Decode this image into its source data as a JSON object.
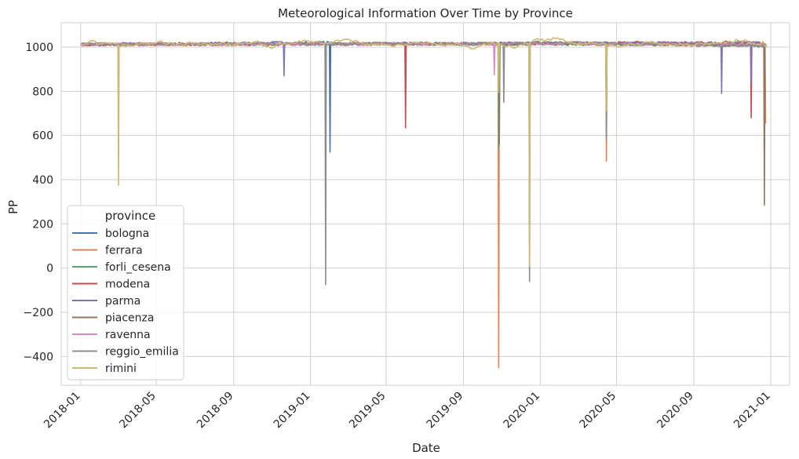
{
  "chart_data": {
    "type": "line",
    "title": "Meteorological Information Over Time by Province",
    "xlabel": "Date",
    "ylabel": "PP",
    "x_type": "date",
    "xlim": [
      "2017-12-01",
      "2021-01-31"
    ],
    "ylim": [
      -530,
      1110
    ],
    "x_ticks": [
      "2018-01",
      "2018-05",
      "2018-09",
      "2019-01",
      "2019-05",
      "2019-09",
      "2020-01",
      "2020-05",
      "2020-09",
      "2021-01"
    ],
    "y_ticks": [
      -400,
      -200,
      0,
      200,
      400,
      600,
      800,
      1000
    ],
    "grid": true,
    "legend": {
      "title": "province",
      "position": "lower-left"
    },
    "baseline_range": [
      990,
      1035
    ],
    "series": [
      {
        "name": "bologna",
        "color": "#4c72b0",
        "points": [
          [
            "2018-01-01",
            1012
          ],
          [
            "2018-06-01",
            1015
          ],
          [
            "2019-01-31",
            1020
          ],
          [
            "2019-02-01",
            525
          ],
          [
            "2019-02-02",
            1015
          ],
          [
            "2019-09-01",
            1012
          ],
          [
            "2020-03-01",
            1018
          ],
          [
            "2020-12-25",
            1010
          ]
        ]
      },
      {
        "name": "ferrara",
        "color": "#dd8452",
        "points": [
          [
            "2018-01-01",
            1012
          ],
          [
            "2019-10-26",
            1015
          ],
          [
            "2019-10-27",
            -450
          ],
          [
            "2019-10-28",
            1015
          ],
          [
            "2020-04-14",
            1015
          ],
          [
            "2020-04-15",
            485
          ],
          [
            "2020-04-16",
            1015
          ],
          [
            "2020-12-23",
            1010
          ],
          [
            "2020-12-24",
            655
          ]
        ]
      },
      {
        "name": "forli_cesena",
        "color": "#55a868",
        "points": [
          [
            "2018-01-01",
            1012
          ],
          [
            "2019-10-26",
            1015
          ],
          [
            "2019-10-27",
            545
          ],
          [
            "2019-10-28",
            1015
          ],
          [
            "2020-12-25",
            1010
          ]
        ]
      },
      {
        "name": "modena",
        "color": "#c44e52",
        "points": [
          [
            "2018-01-01",
            1012
          ],
          [
            "2019-05-31",
            1015
          ],
          [
            "2019-06-01",
            635
          ],
          [
            "2019-06-02",
            1015
          ],
          [
            "2020-11-30",
            1020
          ],
          [
            "2020-12-01",
            680
          ],
          [
            "2020-12-02",
            1020
          ],
          [
            "2020-12-25",
            1010
          ]
        ]
      },
      {
        "name": "parma",
        "color": "#8172b3",
        "points": [
          [
            "2018-01-01",
            1012
          ],
          [
            "2018-11-19",
            1018
          ],
          [
            "2018-11-20",
            870
          ],
          [
            "2018-11-21",
            1015
          ],
          [
            "2020-10-14",
            1018
          ],
          [
            "2020-10-15",
            790
          ],
          [
            "2020-10-16",
            1018
          ],
          [
            "2020-11-30",
            1022
          ],
          [
            "2020-12-01",
            840
          ],
          [
            "2020-12-02",
            1022
          ],
          [
            "2020-12-25",
            1010
          ]
        ]
      },
      {
        "name": "piacenza",
        "color": "#937860",
        "points": [
          [
            "2018-01-01",
            1012
          ],
          [
            "2019-10-27",
            1015
          ],
          [
            "2019-10-28",
            560
          ],
          [
            "2019-10-29",
            1015
          ],
          [
            "2020-12-21",
            1010
          ],
          [
            "2020-12-22",
            285
          ],
          [
            "2020-12-23",
            1005
          ],
          [
            "2020-12-25",
            1000
          ]
        ]
      },
      {
        "name": "ravenna",
        "color": "#da8bc3",
        "points": [
          [
            "2018-01-01",
            1012
          ],
          [
            "2019-10-19",
            1015
          ],
          [
            "2019-10-20",
            875
          ],
          [
            "2019-10-21",
            1015
          ],
          [
            "2020-12-25",
            1010
          ]
        ]
      },
      {
        "name": "reggio_emilia",
        "color": "#8c8c8c",
        "points": [
          [
            "2018-01-01",
            1012
          ],
          [
            "2019-01-24",
            1018
          ],
          [
            "2019-01-25",
            -75
          ],
          [
            "2019-01-26",
            1015
          ],
          [
            "2019-11-03",
            1015
          ],
          [
            "2019-11-04",
            750
          ],
          [
            "2019-11-05",
            1015
          ],
          [
            "2019-12-14",
            1018
          ],
          [
            "2019-12-15",
            -60
          ],
          [
            "2019-12-16",
            1022
          ],
          [
            "2020-04-14",
            1015
          ],
          [
            "2020-04-15",
            580
          ],
          [
            "2020-04-16",
            1015
          ],
          [
            "2020-12-25",
            1005
          ]
        ]
      },
      {
        "name": "rimini",
        "color": "#ccb974",
        "points": [
          [
            "2018-01-01",
            1012
          ],
          [
            "2018-01-10",
            1018
          ],
          [
            "2018-01-20",
            1030
          ],
          [
            "2018-01-28",
            1010
          ],
          [
            "2018-02-10",
            1020
          ],
          [
            "2018-02-25",
            1015
          ],
          [
            "2018-03-01",
            1020
          ],
          [
            "2018-03-02",
            375
          ],
          [
            "2018-03-03",
            1000
          ],
          [
            "2018-03-10",
            1010
          ],
          [
            "2018-03-20",
            1005
          ],
          [
            "2018-04-05",
            1015
          ],
          [
            "2018-04-20",
            1012
          ],
          [
            "2018-05-05",
            1025
          ],
          [
            "2018-05-20",
            1015
          ],
          [
            "2018-06-10",
            1012
          ],
          [
            "2018-07-01",
            1018
          ],
          [
            "2018-07-20",
            1012
          ],
          [
            "2018-08-10",
            1015
          ],
          [
            "2018-09-01",
            1010
          ],
          [
            "2018-09-20",
            1020
          ],
          [
            "2018-10-05",
            1025
          ],
          [
            "2018-10-20",
            1010
          ],
          [
            "2018-10-30",
            995
          ],
          [
            "2018-11-10",
            1018
          ],
          [
            "2018-11-25",
            1012
          ],
          [
            "2018-12-10",
            1020
          ],
          [
            "2018-12-25",
            1028
          ],
          [
            "2019-01-10",
            1025
          ],
          [
            "2019-01-28",
            1015
          ],
          [
            "2019-02-10",
            1030
          ],
          [
            "2019-02-25",
            1035
          ],
          [
            "2019-03-10",
            1025
          ],
          [
            "2019-03-25",
            1018
          ],
          [
            "2019-04-10",
            1010
          ],
          [
            "2019-04-25",
            1015
          ],
          [
            "2019-05-10",
            1005
          ],
          [
            "2019-05-25",
            1012
          ],
          [
            "2019-06-10",
            1018
          ],
          [
            "2019-07-01",
            1015
          ],
          [
            "2019-07-20",
            1012
          ],
          [
            "2019-08-10",
            1010
          ],
          [
            "2019-08-25",
            1015
          ],
          [
            "2019-09-05",
            1005
          ],
          [
            "2019-09-20",
            995
          ],
          [
            "2019-10-01",
            1010
          ],
          [
            "2019-10-15",
            1020
          ],
          [
            "2019-10-25",
            1015
          ],
          [
            "2019-10-26",
            1018
          ],
          [
            "2019-10-27",
            795
          ],
          [
            "2019-10-28",
            1015
          ],
          [
            "2019-11-10",
            1005
          ],
          [
            "2019-11-25",
            1000
          ],
          [
            "2019-12-05",
            1010
          ],
          [
            "2019-12-14",
            1015
          ],
          [
            "2019-12-15",
            10
          ],
          [
            "2019-12-16",
            1020
          ],
          [
            "2019-12-25",
            1035
          ],
          [
            "2020-01-10",
            1030
          ],
          [
            "2020-01-25",
            1038
          ],
          [
            "2020-02-10",
            1025
          ],
          [
            "2020-02-25",
            1018
          ],
          [
            "2020-03-10",
            1015
          ],
          [
            "2020-03-25",
            1020
          ],
          [
            "2020-04-05",
            1012
          ],
          [
            "2020-04-14",
            1015
          ],
          [
            "2020-04-15",
            710
          ],
          [
            "2020-04-16",
            1010
          ],
          [
            "2020-05-01",
            1005
          ],
          [
            "2020-05-20",
            1012
          ],
          [
            "2020-06-10",
            1015
          ],
          [
            "2020-07-01",
            1018
          ],
          [
            "2020-07-20",
            1012
          ],
          [
            "2020-08-10",
            1015
          ],
          [
            "2020-08-25",
            1008
          ],
          [
            "2020-09-10",
            1018
          ],
          [
            "2020-09-25",
            1012
          ],
          [
            "2020-10-10",
            1020
          ],
          [
            "2020-10-25",
            1025
          ],
          [
            "2020-11-10",
            1030
          ],
          [
            "2020-11-25",
            1025
          ],
          [
            "2020-12-05",
            1015
          ],
          [
            "2020-12-15",
            1010
          ],
          [
            "2020-12-20",
            1025
          ],
          [
            "2020-12-24",
            1000
          ],
          [
            "2020-12-26",
            1005
          ]
        ]
      }
    ]
  }
}
